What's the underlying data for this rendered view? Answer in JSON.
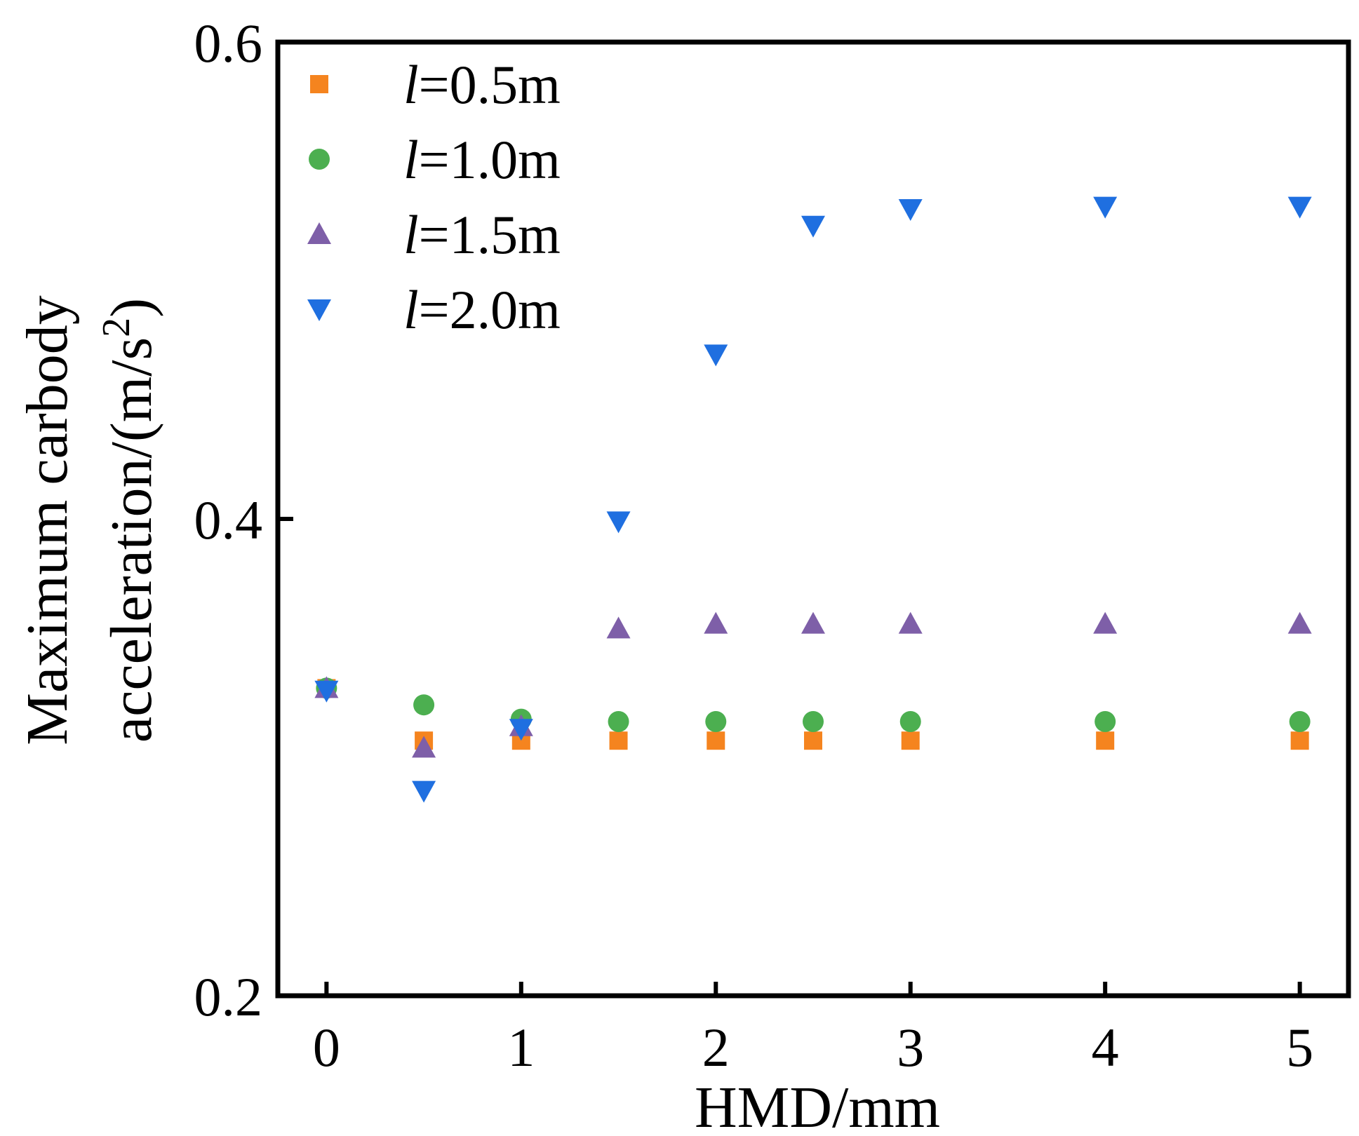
{
  "chart_data": {
    "type": "scatter",
    "title": "",
    "xlabel": "HMD/mm",
    "ylabel_line1": "Maximum carbody",
    "ylabel_line2_prefix": "acceleration/(m/s",
    "ylabel_sup": "2",
    "ylabel_suffix": ")",
    "xlim": [
      -0.25,
      5.25
    ],
    "ylim": [
      0.2,
      0.6
    ],
    "x_ticks": [
      0,
      1,
      2,
      3,
      4,
      5
    ],
    "x_tick_labels": [
      "0",
      "1",
      "2",
      "3",
      "4",
      "5"
    ],
    "y_ticks": [
      0.2,
      0.4,
      0.6
    ],
    "y_tick_labels": [
      "0.2",
      "0.4",
      "0.6"
    ],
    "grid": false,
    "legend_position": "top-left",
    "x": [
      0,
      0.5,
      1,
      1.5,
      2,
      2.5,
      3,
      4,
      5
    ],
    "series": [
      {
        "name_prefix": "l",
        "name_suffix": "=0.5m",
        "marker": "square",
        "color": "#f5841f",
        "values": [
          0.329,
          0.307,
          0.307,
          0.307,
          0.307,
          0.307,
          0.307,
          0.307,
          0.307
        ]
      },
      {
        "name_prefix": "l",
        "name_suffix": "=1.0m",
        "marker": "circle",
        "color": "#4caf50",
        "values": [
          0.329,
          0.322,
          0.316,
          0.315,
          0.315,
          0.315,
          0.315,
          0.315,
          0.315
        ]
      },
      {
        "name_prefix": "l",
        "name_suffix": "=1.5m",
        "marker": "triangle-up",
        "color": "#7e5fa8",
        "values": [
          0.329,
          0.304,
          0.313,
          0.354,
          0.356,
          0.356,
          0.356,
          0.356,
          0.356
        ]
      },
      {
        "name_prefix": "l",
        "name_suffix": "=2.0m",
        "marker": "triangle-down",
        "color": "#1f6fe0",
        "values": [
          0.328,
          0.286,
          0.312,
          0.399,
          0.469,
          0.523,
          0.53,
          0.531,
          0.531
        ]
      }
    ]
  }
}
